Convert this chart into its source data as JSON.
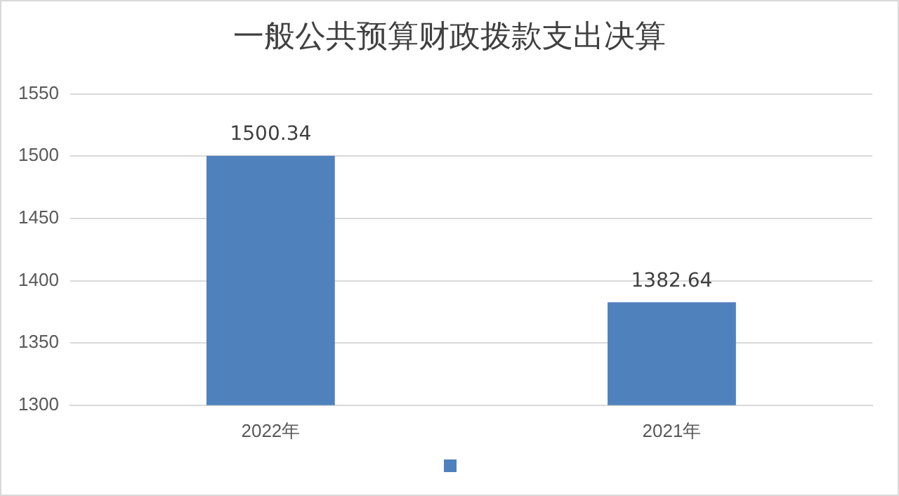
{
  "chart_data": {
    "type": "bar",
    "title": "一般公共预算财政拨款支出决算",
    "categories": [
      "2022年",
      "2021年"
    ],
    "series": [
      {
        "color": "#4f81bd",
        "values": [
          1500.34,
          1382.64
        ]
      }
    ],
    "ylim": [
      1300,
      1550
    ],
    "yticks": [
      1300,
      1350,
      1400,
      1450,
      1500,
      1550
    ],
    "grid": "y",
    "data_labels": true
  }
}
